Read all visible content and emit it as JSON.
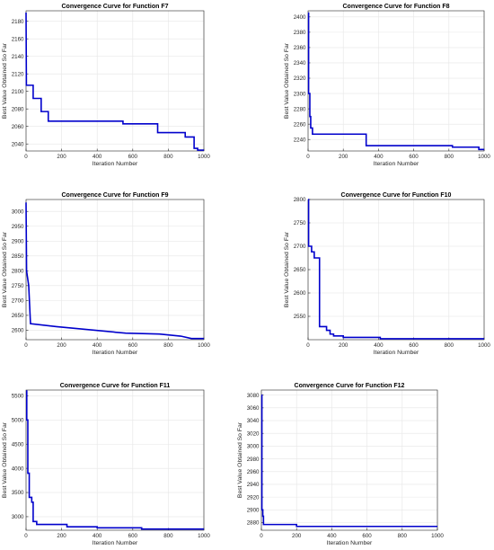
{
  "figure": {
    "series_color": "#0000cc"
  },
  "chart_data": [
    {
      "type": "line",
      "title": "Convergence Curve for Function F7",
      "xlabel": "Iteration Number",
      "ylabel": "Best Value Obtained So Far",
      "xlim": [
        0,
        1000
      ],
      "ylim": [
        2032,
        2192
      ],
      "xticks": [
        0,
        200,
        400,
        600,
        800,
        1000
      ],
      "yticks": [
        2040,
        2060,
        2080,
        2100,
        2120,
        2140,
        2160,
        2180
      ],
      "grid": true,
      "x": [
        0,
        2,
        5,
        40,
        40,
        85,
        85,
        125,
        125,
        545,
        545,
        740,
        740,
        895,
        895,
        945,
        945,
        965,
        965,
        1000
      ],
      "y": [
        2190,
        2107,
        2107,
        2107,
        2092,
        2092,
        2077,
        2077,
        2066,
        2066,
        2063,
        2063,
        2053,
        2053,
        2048,
        2048,
        2035,
        2035,
        2033,
        2033
      ]
    },
    {
      "type": "line",
      "title": "Convergence Curve for Function F8",
      "xlabel": "Iteration Number",
      "ylabel": "Best Value Obtained So Far",
      "xlim": [
        0,
        1000
      ],
      "ylim": [
        2225,
        2408
      ],
      "xticks": [
        0,
        200,
        400,
        600,
        800,
        1000
      ],
      "yticks": [
        2240,
        2260,
        2280,
        2300,
        2320,
        2340,
        2360,
        2380,
        2400
      ],
      "grid": true,
      "x": [
        0,
        3,
        3,
        10,
        10,
        15,
        15,
        25,
        25,
        330,
        330,
        820,
        820,
        970,
        970,
        1000
      ],
      "y": [
        2405,
        2405,
        2300,
        2300,
        2270,
        2270,
        2255,
        2255,
        2247,
        2247,
        2232,
        2232,
        2230,
        2230,
        2227,
        2227
      ]
    },
    {
      "type": "line",
      "title": "Convergence Curve for Function F9",
      "xlabel": "Iteration Number",
      "ylabel": "Best Value Obtained So Far",
      "xlim": [
        0,
        1000
      ],
      "ylim": [
        2568,
        3040
      ],
      "xticks": [
        0,
        200,
        400,
        600,
        800,
        1000
      ],
      "yticks": [
        2600,
        2650,
        2700,
        2750,
        2800,
        2850,
        2900,
        2950,
        3000
      ],
      "grid": true,
      "x": [
        0,
        3,
        3,
        15,
        15,
        25,
        25,
        170,
        170,
        560,
        560,
        750,
        750,
        870,
        870,
        930,
        930,
        1000
      ],
      "y": [
        3030,
        2800,
        2800,
        2750,
        2750,
        2622,
        2622,
        2612,
        2612,
        2590,
        2590,
        2587,
        2587,
        2580,
        2580,
        2572,
        2572,
        2572
      ]
    },
    {
      "type": "line",
      "title": "Convergence Curve for Function F10",
      "xlabel": "Iteration Number",
      "ylabel": "Best Value Obtained So Far",
      "xlim": [
        0,
        1000
      ],
      "ylim": [
        2500,
        2800
      ],
      "xticks": [
        0,
        200,
        400,
        600,
        800,
        1000
      ],
      "yticks": [
        2550,
        2600,
        2650,
        2700,
        2750,
        2800
      ],
      "grid": true,
      "x": [
        0,
        3,
        3,
        20,
        20,
        35,
        35,
        65,
        65,
        105,
        105,
        125,
        125,
        145,
        145,
        200,
        200,
        410,
        410,
        1000
      ],
      "y": [
        2800,
        2800,
        2700,
        2700,
        2688,
        2688,
        2675,
        2675,
        2528,
        2528,
        2520,
        2520,
        2512,
        2512,
        2508,
        2508,
        2505,
        2505,
        2502,
        2502
      ]
    },
    {
      "type": "line",
      "title": "Convergence Curve for Function F11",
      "xlabel": "Iteration Number",
      "ylabel": "Best Value Obtained So Far",
      "xlim": [
        0,
        1000
      ],
      "ylim": [
        2720,
        5620
      ],
      "xticks": [
        0,
        200,
        400,
        600,
        800,
        1000
      ],
      "yticks": [
        3000,
        3500,
        4000,
        4500,
        5000,
        5500
      ],
      "grid": true,
      "x": [
        0,
        4,
        4,
        10,
        10,
        18,
        18,
        32,
        32,
        40,
        40,
        60,
        60,
        230,
        230,
        400,
        400,
        650,
        650,
        1000
      ],
      "y": [
        5600,
        5600,
        5000,
        5000,
        3900,
        3900,
        3400,
        3400,
        3300,
        3300,
        2900,
        2900,
        2840,
        2840,
        2790,
        2790,
        2770,
        2770,
        2745,
        2745
      ]
    },
    {
      "type": "line",
      "title": "Convergence Curve for Function F12",
      "xlabel": "Iteration Number",
      "ylabel": "Best Value Obtained So Far",
      "xlim": [
        0,
        1000
      ],
      "ylim": [
        2868,
        3088
      ],
      "xticks": [
        0,
        200,
        400,
        600,
        800,
        1000
      ],
      "yticks": [
        2880,
        2900,
        2920,
        2940,
        2960,
        2980,
        3000,
        3020,
        3040,
        3060,
        3080
      ],
      "grid": true,
      "x": [
        0,
        3,
        3,
        8,
        8,
        12,
        12,
        200,
        200,
        1000
      ],
      "y": [
        3080,
        3080,
        2900,
        2900,
        2890,
        2890,
        2877,
        2877,
        2874,
        2874
      ]
    }
  ]
}
